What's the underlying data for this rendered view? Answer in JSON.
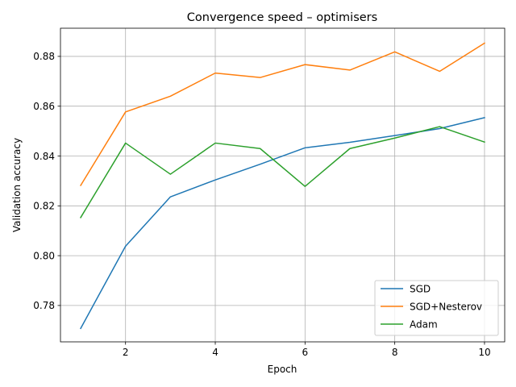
{
  "chart_data": {
    "type": "line",
    "title": "Convergence speed – optimisers",
    "xlabel": "Epoch",
    "ylabel": "Validation accuracy",
    "x": [
      1,
      2,
      3,
      4,
      5,
      6,
      7,
      8,
      9,
      10
    ],
    "xlim": [
      0.55,
      10.45
    ],
    "ylim": [
      0.7654,
      0.8913
    ],
    "xticks": [
      2,
      4,
      6,
      8,
      10
    ],
    "xtick_labels": [
      "2",
      "4",
      "6",
      "8",
      "10"
    ],
    "yticks": [
      0.78,
      0.8,
      0.82,
      0.84,
      0.86,
      0.88
    ],
    "ytick_labels": [
      "0.78",
      "0.80",
      "0.82",
      "0.84",
      "0.86",
      "0.88"
    ],
    "grid": true,
    "legend_position": "lower-right",
    "series": [
      {
        "name": "SGD",
        "color": "#1f77b4",
        "values": [
          0.7708,
          0.8038,
          0.8236,
          0.8304,
          0.8367,
          0.8433,
          0.8455,
          0.8482,
          0.851,
          0.8554
        ]
      },
      {
        "name": "SGD+Nesterov",
        "color": "#ff7f0e",
        "values": [
          0.8282,
          0.8577,
          0.864,
          0.8733,
          0.8715,
          0.8767,
          0.8745,
          0.8818,
          0.874,
          0.8853
        ]
      },
      {
        "name": "Adam",
        "color": "#2ca02c",
        "values": [
          0.8153,
          0.8452,
          0.8327,
          0.8452,
          0.843,
          0.8278,
          0.843,
          0.8472,
          0.8518,
          0.8456
        ]
      }
    ]
  }
}
